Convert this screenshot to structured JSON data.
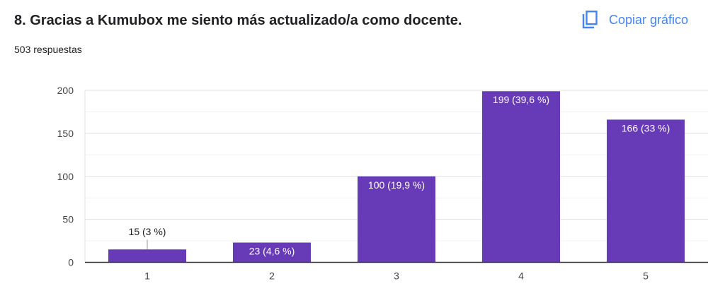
{
  "header": {
    "title": "8. Gracias a Kumubox me siento más actualizado/a como docente.",
    "responses": "503 respuestas",
    "copy_label": "Copiar gráfico",
    "copy_icon": "copy-icon"
  },
  "colors": {
    "bar": "#673ab7",
    "accent": "#4285f4"
  },
  "chart_data": {
    "type": "bar",
    "title": "",
    "xlabel": "",
    "ylabel": "",
    "categories": [
      "1",
      "2",
      "3",
      "4",
      "5"
    ],
    "values": [
      15,
      23,
      100,
      199,
      166
    ],
    "labels": [
      "15 (3 %)",
      "23 (4,6 %)",
      "100 (19,9 %)",
      "199 (39,6 %)",
      "166 (33 %)"
    ],
    "ylim": [
      0,
      200
    ],
    "yticks": [
      0,
      50,
      100,
      150,
      200
    ],
    "grid": true
  }
}
